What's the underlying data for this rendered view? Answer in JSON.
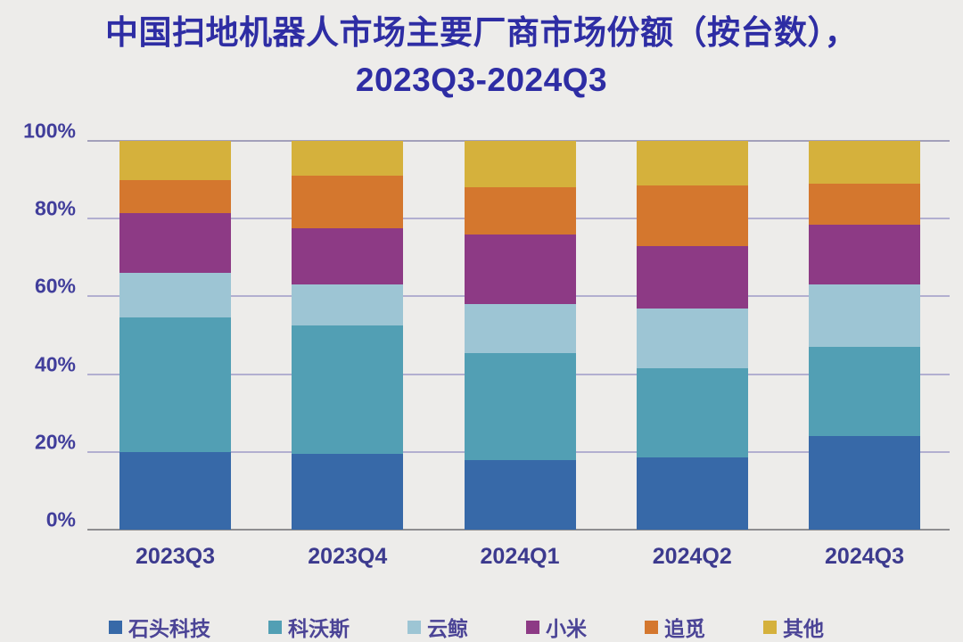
{
  "title": {
    "line1": "中国扫地机器人市场主要厂商市场份额（按台数），",
    "line2": "2023Q3-2024Q3"
  },
  "colors": {
    "background": "#edecea",
    "title_text": "#2e2da4",
    "axis_text": "#413e9b",
    "gridline": "#b2afd0",
    "baseline": "#8e8e90"
  },
  "chart_data": {
    "type": "bar",
    "stacked": true,
    "title": "中国扫地机器人市场主要厂商市场份额（按台数），2023Q3-2024Q3",
    "categories": [
      "2023Q3",
      "2023Q4",
      "2024Q1",
      "2024Q2",
      "2024Q3"
    ],
    "series": [
      {
        "name": "石头科技",
        "color": "#3769a8",
        "values": [
          20,
          19.5,
          18,
          18.5,
          24
        ]
      },
      {
        "name": "科沃斯",
        "color": "#529fb4",
        "values": [
          34.5,
          33,
          27.5,
          23,
          23
        ]
      },
      {
        "name": "云鲸",
        "color": "#9dc5d4",
        "values": [
          11.5,
          10.5,
          12.5,
          15.5,
          16
        ]
      },
      {
        "name": "小米",
        "color": "#8d3a85",
        "values": [
          15.5,
          14.5,
          18,
          16,
          15.5
        ]
      },
      {
        "name": "追觅",
        "color": "#d4772e",
        "values": [
          8.5,
          13.5,
          12,
          15.5,
          10.5
        ]
      },
      {
        "name": "其他",
        "color": "#d5b13c",
        "values": [
          10,
          9,
          12,
          11.5,
          11
        ]
      }
    ],
    "xlabel": "",
    "ylabel": "",
    "yticks": [
      "0%",
      "20%",
      "40%",
      "60%",
      "80%",
      "100%"
    ],
    "ylim": [
      0,
      100
    ],
    "grid": true,
    "legend_position": "bottom"
  }
}
